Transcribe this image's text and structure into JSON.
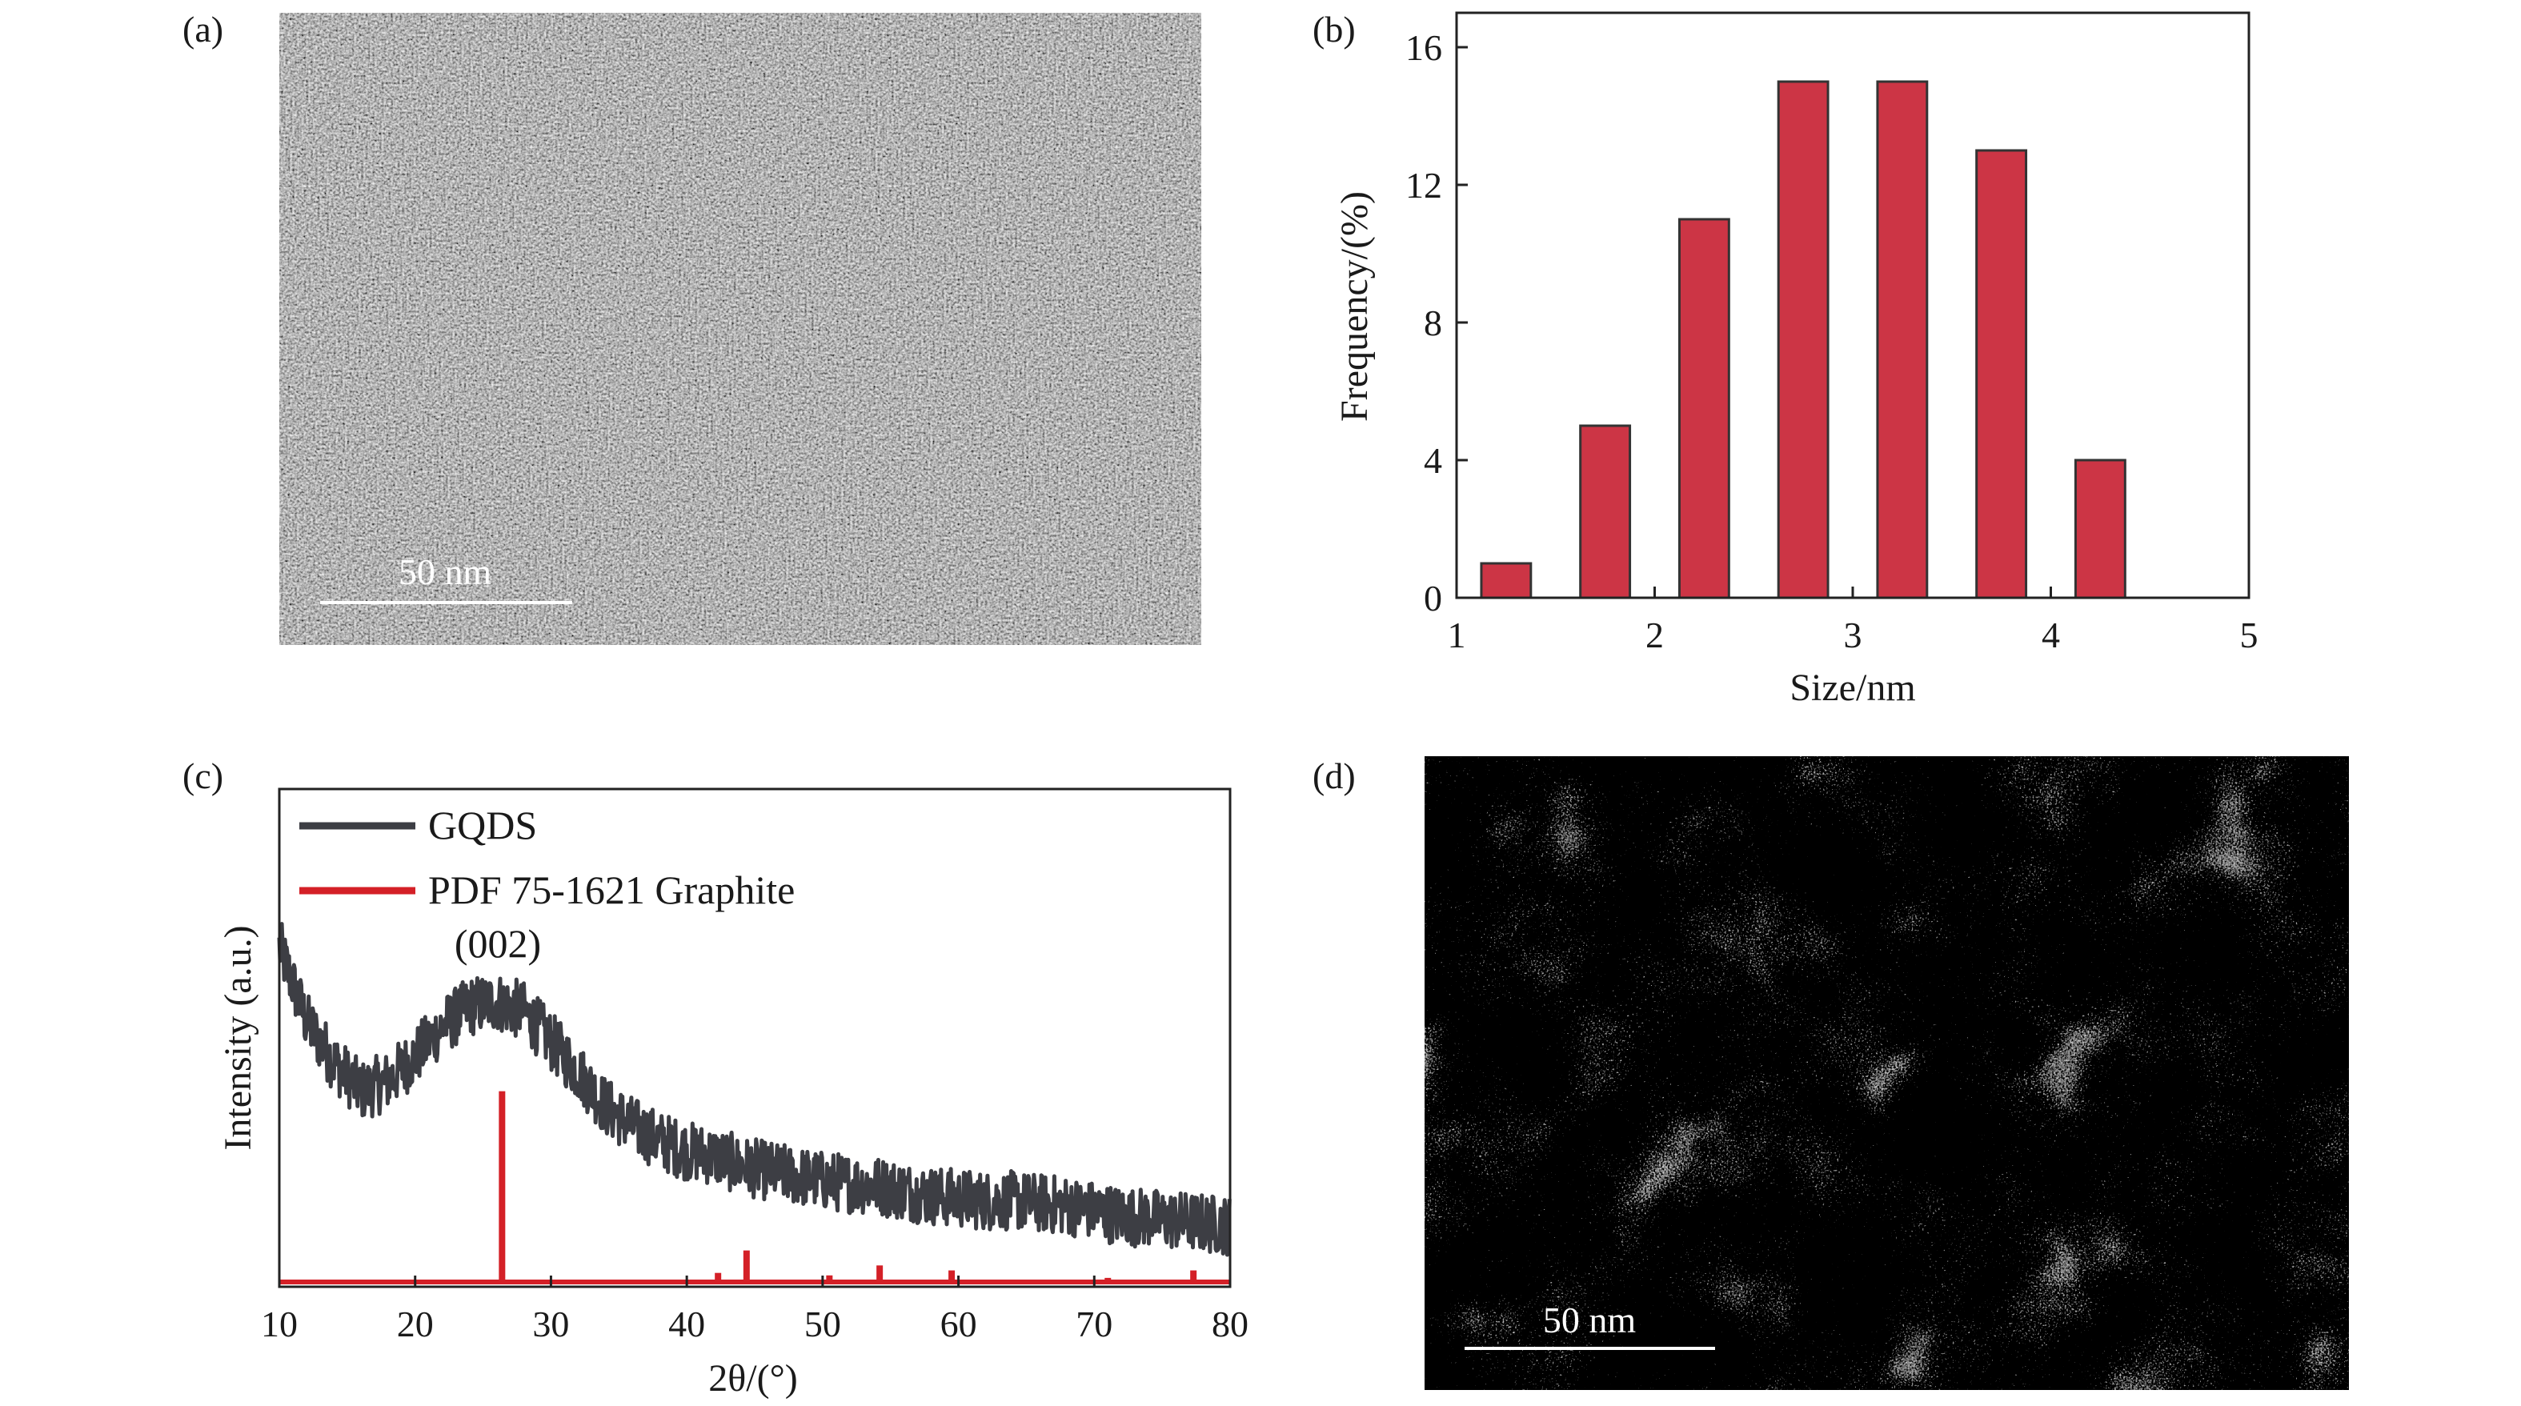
{
  "panels": {
    "a": {
      "label": "(a)",
      "scale_bar": "50 nm"
    },
    "b": {
      "label": "(b)"
    },
    "c": {
      "label": "(c)",
      "annotation": "(002)"
    },
    "d": {
      "label": "(d)",
      "scale_bar": "50 nm"
    }
  },
  "colors": {
    "bar": "#cc3545",
    "gqds": "#3d3e44",
    "pdf": "#d42027"
  },
  "chart_data": [
    {
      "type": "bar",
      "panel": "b",
      "title": "",
      "xlabel": "Size/nm",
      "ylabel": "Frequency/(%)",
      "xlim": [
        1,
        5
      ],
      "ylim": [
        0,
        17
      ],
      "xticks": [
        "1",
        "2",
        "3",
        "4",
        "5"
      ],
      "yticks": [
        "0",
        "4",
        "8",
        "12",
        "16"
      ],
      "bar_width": 0.25,
      "x": [
        1.25,
        1.75,
        2.25,
        2.75,
        3.25,
        3.75,
        4.25
      ],
      "values": [
        1,
        5,
        11,
        15,
        15,
        13,
        4
      ]
    },
    {
      "type": "line",
      "panel": "c",
      "xlabel": "2θ/(°)",
      "ylabel": "Intensity (a.u.)",
      "xlim": [
        10,
        80
      ],
      "ylim": [
        0,
        100
      ],
      "xticks": [
        "10",
        "20",
        "30",
        "40",
        "50",
        "60",
        "70",
        "80"
      ],
      "legend_position": "top-left",
      "series": [
        {
          "name": "GQDS",
          "style": "noisy-line",
          "x": [
            10,
            12,
            14,
            16,
            18,
            20,
            22,
            24,
            26,
            28,
            30,
            32,
            34,
            36,
            38,
            40,
            42,
            44,
            46,
            48,
            50,
            52,
            54,
            56,
            58,
            60,
            62,
            64,
            66,
            68,
            70,
            72,
            74,
            76,
            78,
            80
          ],
          "y": [
            67,
            52,
            44,
            38,
            40,
            45,
            51,
            55,
            56,
            54,
            48,
            42,
            35,
            31,
            28,
            26,
            25,
            23,
            22,
            21,
            20,
            19.5,
            19,
            18,
            17,
            16.5,
            16,
            16,
            15.5,
            15,
            14,
            13,
            12.5,
            12,
            11.5,
            11
          ],
          "noise_amplitude": 6
        },
        {
          "name": "PDF 75-1621 Graphite",
          "style": "sticks",
          "x": [
            26.4,
            42.3,
            44.4,
            50.5,
            54.2,
            59.5,
            71.0,
            77.3
          ],
          "y": [
            38,
            1.5,
            6,
            1,
            3,
            2,
            0.5,
            2
          ]
        }
      ]
    }
  ]
}
